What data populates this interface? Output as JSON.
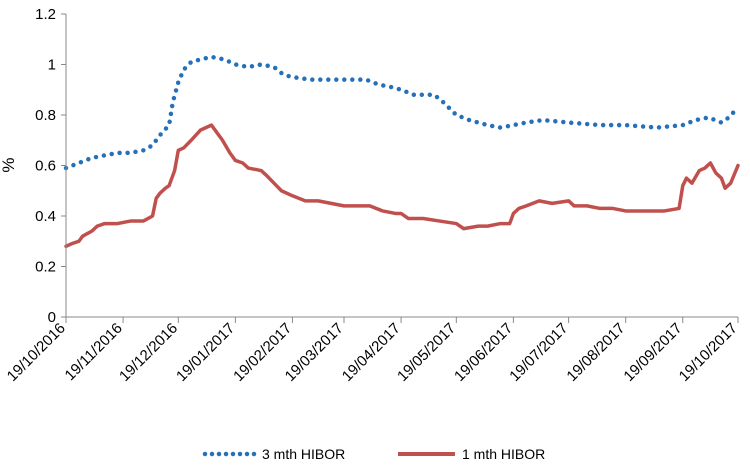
{
  "chart_data": {
    "type": "line",
    "title": "",
    "xlabel": "",
    "ylabel": "%",
    "ylim": [
      0,
      1.2
    ],
    "yticks": [
      "0",
      "0.2",
      "0.4",
      "0.6",
      "0.8",
      "1",
      "1.2"
    ],
    "xticks": [
      "19/10/2016",
      "19/11/2016",
      "19/12/2016",
      "19/01/2017",
      "19/02/2017",
      "19/03/2017",
      "19/04/2017",
      "19/05/2017",
      "19/06/2017",
      "19/07/2017",
      "19/08/2017",
      "19/09/2017",
      "19/10/2017"
    ],
    "xlim": [
      "2016-10-19",
      "2017-10-19"
    ],
    "grid": false,
    "legend": "bottom",
    "series": [
      {
        "name": "3 mth HIBOR",
        "color": "#2471BA",
        "style": "dotted",
        "points": [
          [
            "2016-10-19",
            0.59
          ],
          [
            "2016-10-26",
            0.61
          ],
          [
            "2016-11-02",
            0.63
          ],
          [
            "2016-11-09",
            0.64
          ],
          [
            "2016-11-16",
            0.65
          ],
          [
            "2016-11-23",
            0.65
          ],
          [
            "2016-11-30",
            0.66
          ],
          [
            "2016-12-05",
            0.68
          ],
          [
            "2016-12-09",
            0.72
          ],
          [
            "2016-12-14",
            0.76
          ],
          [
            "2016-12-16",
            0.85
          ],
          [
            "2016-12-19",
            0.93
          ],
          [
            "2016-12-22",
            0.98
          ],
          [
            "2016-12-26",
            1.01
          ],
          [
            "2016-12-31",
            1.02
          ],
          [
            "2017-01-06",
            1.03
          ],
          [
            "2017-01-13",
            1.02
          ],
          [
            "2017-01-19",
            1.0
          ],
          [
            "2017-01-26",
            0.99
          ],
          [
            "2017-02-02",
            1.0
          ],
          [
            "2017-02-09",
            0.99
          ],
          [
            "2017-02-14",
            0.96
          ],
          [
            "2017-02-19",
            0.95
          ],
          [
            "2017-03-01",
            0.94
          ],
          [
            "2017-03-19",
            0.94
          ],
          [
            "2017-03-31",
            0.94
          ],
          [
            "2017-04-07",
            0.92
          ],
          [
            "2017-04-14",
            0.91
          ],
          [
            "2017-04-19",
            0.9
          ],
          [
            "2017-04-26",
            0.88
          ],
          [
            "2017-05-07",
            0.88
          ],
          [
            "2017-05-12",
            0.85
          ],
          [
            "2017-05-19",
            0.8
          ],
          [
            "2017-05-26",
            0.78
          ],
          [
            "2017-06-05",
            0.76
          ],
          [
            "2017-06-12",
            0.75
          ],
          [
            "2017-06-19",
            0.76
          ],
          [
            "2017-06-26",
            0.77
          ],
          [
            "2017-07-05",
            0.78
          ],
          [
            "2017-07-19",
            0.77
          ],
          [
            "2017-08-05",
            0.76
          ],
          [
            "2017-08-19",
            0.76
          ],
          [
            "2017-09-05",
            0.75
          ],
          [
            "2017-09-19",
            0.76
          ],
          [
            "2017-09-26",
            0.78
          ],
          [
            "2017-10-03",
            0.79
          ],
          [
            "2017-10-10",
            0.77
          ],
          [
            "2017-10-14",
            0.79
          ],
          [
            "2017-10-19",
            0.83
          ]
        ]
      },
      {
        "name": "1 mth HIBOR",
        "color": "#C0504D",
        "style": "solid",
        "points": [
          [
            "2016-10-19",
            0.28
          ],
          [
            "2016-10-22",
            0.29
          ],
          [
            "2016-10-26",
            0.3
          ],
          [
            "2016-10-28",
            0.32
          ],
          [
            "2016-11-02",
            0.34
          ],
          [
            "2016-11-05",
            0.36
          ],
          [
            "2016-11-09",
            0.37
          ],
          [
            "2016-11-16",
            0.37
          ],
          [
            "2016-11-23",
            0.38
          ],
          [
            "2016-11-30",
            0.38
          ],
          [
            "2016-12-05",
            0.4
          ],
          [
            "2016-12-07",
            0.47
          ],
          [
            "2016-12-09",
            0.49
          ],
          [
            "2016-12-12",
            0.51
          ],
          [
            "2016-12-14",
            0.52
          ],
          [
            "2016-12-17",
            0.58
          ],
          [
            "2016-12-19",
            0.66
          ],
          [
            "2016-12-22",
            0.67
          ],
          [
            "2016-12-26",
            0.7
          ],
          [
            "2016-12-31",
            0.74
          ],
          [
            "2017-01-03",
            0.75
          ],
          [
            "2017-01-06",
            0.76
          ],
          [
            "2017-01-09",
            0.73
          ],
          [
            "2017-01-12",
            0.7
          ],
          [
            "2017-01-16",
            0.65
          ],
          [
            "2017-01-19",
            0.62
          ],
          [
            "2017-01-23",
            0.61
          ],
          [
            "2017-01-26",
            0.59
          ],
          [
            "2017-02-02",
            0.58
          ],
          [
            "2017-02-05",
            0.56
          ],
          [
            "2017-02-09",
            0.53
          ],
          [
            "2017-02-13",
            0.5
          ],
          [
            "2017-02-19",
            0.48
          ],
          [
            "2017-02-26",
            0.46
          ],
          [
            "2017-03-05",
            0.46
          ],
          [
            "2017-03-12",
            0.45
          ],
          [
            "2017-03-19",
            0.44
          ],
          [
            "2017-03-26",
            0.44
          ],
          [
            "2017-04-02",
            0.44
          ],
          [
            "2017-04-09",
            0.42
          ],
          [
            "2017-04-16",
            0.41
          ],
          [
            "2017-04-19",
            0.41
          ],
          [
            "2017-04-23",
            0.39
          ],
          [
            "2017-05-01",
            0.39
          ],
          [
            "2017-05-10",
            0.38
          ],
          [
            "2017-05-19",
            0.37
          ],
          [
            "2017-05-23",
            0.35
          ],
          [
            "2017-05-31",
            0.36
          ],
          [
            "2017-06-05",
            0.36
          ],
          [
            "2017-06-12",
            0.37
          ],
          [
            "2017-06-17",
            0.37
          ],
          [
            "2017-06-19",
            0.41
          ],
          [
            "2017-06-22",
            0.43
          ],
          [
            "2017-06-26",
            0.44
          ],
          [
            "2017-07-03",
            0.46
          ],
          [
            "2017-07-10",
            0.45
          ],
          [
            "2017-07-19",
            0.46
          ],
          [
            "2017-07-22",
            0.44
          ],
          [
            "2017-07-29",
            0.44
          ],
          [
            "2017-08-05",
            0.43
          ],
          [
            "2017-08-12",
            0.43
          ],
          [
            "2017-08-19",
            0.42
          ],
          [
            "2017-08-26",
            0.42
          ],
          [
            "2017-09-02",
            0.42
          ],
          [
            "2017-09-09",
            0.42
          ],
          [
            "2017-09-17",
            0.43
          ],
          [
            "2017-09-19",
            0.52
          ],
          [
            "2017-09-21",
            0.55
          ],
          [
            "2017-09-24",
            0.53
          ],
          [
            "2017-09-28",
            0.58
          ],
          [
            "2017-10-01",
            0.59
          ],
          [
            "2017-10-04",
            0.61
          ],
          [
            "2017-10-07",
            0.57
          ],
          [
            "2017-10-10",
            0.55
          ],
          [
            "2017-10-12",
            0.51
          ],
          [
            "2017-10-15",
            0.53
          ],
          [
            "2017-10-19",
            0.6
          ]
        ]
      }
    ]
  }
}
